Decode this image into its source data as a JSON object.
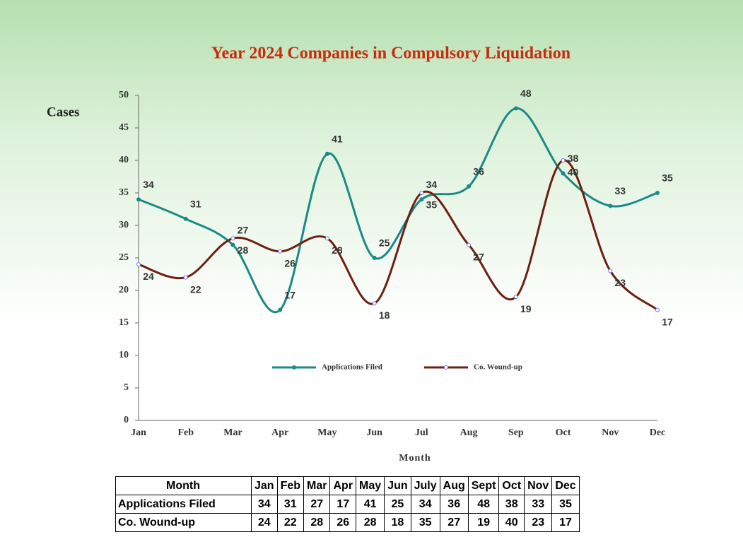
{
  "chart_data": {
    "type": "line",
    "title": "Year 2024 Companies in Compulsory Liquidation",
    "y_label": "Cases",
    "x_label": "Month",
    "categories": [
      "Jan",
      "Feb",
      "Mar",
      "Apr",
      "May",
      "Jun",
      "Jul",
      "Aug",
      "Sep",
      "Oct",
      "Nov",
      "Dec"
    ],
    "series": [
      {
        "name": "Applications Filed",
        "color": "#1a8a87",
        "values": [
          34,
          31,
          27,
          17,
          41,
          25,
          34,
          36,
          48,
          38,
          33,
          35
        ]
      },
      {
        "name": "Co. Wound-up",
        "color": "#6e1f10",
        "values": [
          24,
          22,
          28,
          26,
          28,
          18,
          35,
          27,
          19,
          40,
          23,
          17
        ]
      }
    ],
    "ylim": [
      0,
      50
    ],
    "yticks": [
      0,
      5,
      10,
      15,
      20,
      25,
      30,
      35,
      40,
      45,
      50
    ],
    "grid": false,
    "smooth": true,
    "legend": "bottom",
    "table": {
      "columns": [
        "Jan",
        "Feb",
        "Mar",
        "Apr",
        "May",
        "Jun",
        "July",
        "Aug",
        "Sept",
        "Oct",
        "Nov",
        "Dec"
      ]
    }
  }
}
